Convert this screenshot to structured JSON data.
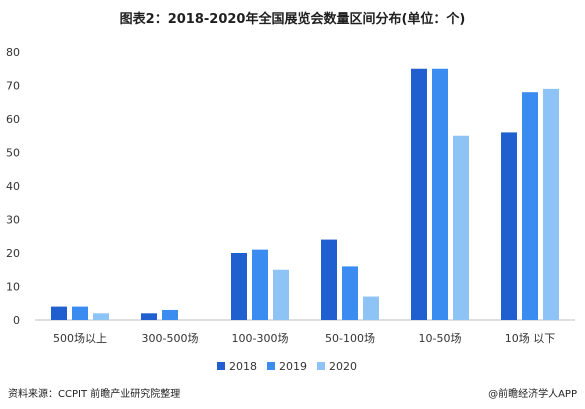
{
  "chart_data": {
    "type": "bar",
    "title": "图表2：2018-2020年全国展览会数量区间分布(单位：个)",
    "categories": [
      "500场以上",
      "300-500场",
      "100-300场",
      "50-100场",
      "10-50场",
      "10场 以下"
    ],
    "series": [
      {
        "name": "2018",
        "color": "#1f5fd0",
        "values": [
          4,
          2,
          20,
          24,
          75,
          56
        ]
      },
      {
        "name": "2019",
        "color": "#3a8cf0",
        "values": [
          4,
          3,
          21,
          16,
          75,
          68
        ]
      },
      {
        "name": "2020",
        "color": "#8ec3f5",
        "values": [
          2,
          0,
          15,
          7,
          55,
          69
        ]
      }
    ],
    "ylim": [
      0,
      80
    ],
    "yticks": [
      0,
      10,
      20,
      30,
      40,
      50,
      60,
      70,
      80
    ],
    "grid": false,
    "legend": "bottom-center"
  },
  "footer": {
    "source": "资料来源：CCPIT 前瞻产业研究院整理",
    "brand": "@前瞻经济学人APP"
  }
}
